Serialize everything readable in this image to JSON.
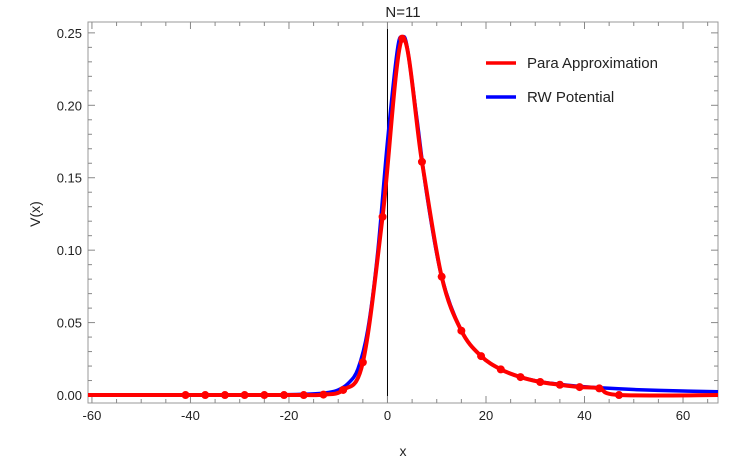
{
  "chart_data": {
    "type": "line",
    "title": "N=11",
    "xlabel": "x",
    "ylabel": "V(x)",
    "xlim": [
      -60.8,
      67.1
    ],
    "ylim": [
      -0.0055,
      0.2575
    ],
    "xticks": [
      "-60",
      "-40",
      "-20",
      "0",
      "20",
      "40",
      "60"
    ],
    "xtick_values": [
      -60,
      -40,
      -20,
      0,
      20,
      40,
      60
    ],
    "yticks": [
      "0.00",
      "0.05",
      "0.10",
      "0.15",
      "0.20",
      "0.25"
    ],
    "ytick_values": [
      0,
      0.05,
      0.1,
      0.15,
      0.2,
      0.25
    ],
    "grid": false,
    "frame": true,
    "legend_position": "top-right",
    "series": [
      {
        "name": "Para Approximation",
        "color": "#ff0000",
        "markers": true,
        "x": [
          -41,
          -37,
          -33,
          -29,
          -25,
          -21,
          -17,
          -13,
          -9,
          -5,
          -1,
          3,
          7,
          11,
          15,
          19,
          23,
          27,
          31,
          35,
          39,
          43,
          47
        ],
        "y": [
          0,
          0,
          0,
          0,
          0,
          0,
          0,
          0.0003,
          0.0035,
          0.0226,
          0.123,
          0.246,
          0.161,
          0.0817,
          0.0444,
          0.0269,
          0.0177,
          0.0124,
          0.009,
          0.0071,
          0.0055,
          0.0046,
          0
        ]
      },
      {
        "name": "RW Potential",
        "color": "#0000ff",
        "markers": false,
        "x": [
          -60.8,
          -30,
          -20,
          -15,
          -12,
          -10,
          -8,
          -6,
          -4,
          -2,
          0,
          2,
          3,
          4,
          6,
          8,
          11,
          15,
          19,
          23,
          27,
          31,
          35,
          39,
          43,
          50,
          60,
          67.1
        ],
        "y": [
          0,
          0.0001,
          0.0003,
          0.0008,
          0.0018,
          0.0035,
          0.008,
          0.018,
          0.045,
          0.098,
          0.175,
          0.238,
          0.247,
          0.24,
          0.19,
          0.138,
          0.0817,
          0.0444,
          0.0269,
          0.0177,
          0.0124,
          0.0092,
          0.0074,
          0.006,
          0.005,
          0.0038,
          0.0028,
          0.0023
        ]
      }
    ]
  }
}
